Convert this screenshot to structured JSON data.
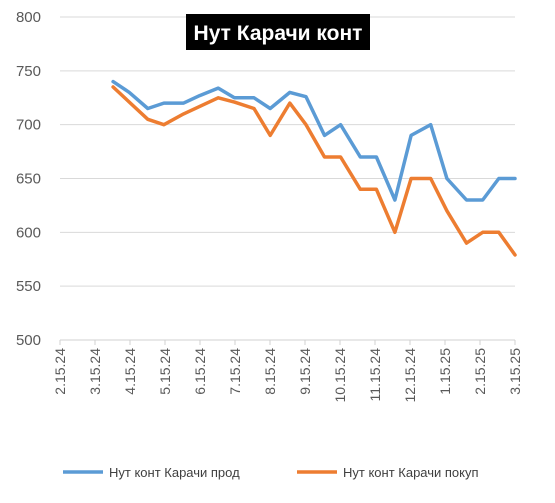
{
  "chart_data": {
    "type": "line",
    "title": "Нут Карачи конт",
    "xlabel": "",
    "ylabel": "",
    "ylim": [
      500,
      800
    ],
    "yticks": [
      500,
      550,
      600,
      650,
      700,
      750,
      800
    ],
    "xtick_labels": [
      "2.15.24",
      "3.15.24",
      "4.15.24",
      "5.15.24",
      "6.15.24",
      "7.15.24",
      "8.15.24",
      "9.15.24",
      "10.15.24",
      "11.15.24",
      "12.15.24",
      "1.15.25",
      "2.15.25",
      "3.15.25"
    ],
    "x_start": "2.15.24",
    "x_end": "3.15.25",
    "grid": "horizontal",
    "legend_position": "bottom",
    "series": [
      {
        "name": "Нут конт Карачи прод",
        "color": "#5B9BD5",
        "points": [
          [
            "2024-04-01",
            740
          ],
          [
            "2024-04-15",
            730
          ],
          [
            "2024-05-01",
            715
          ],
          [
            "2024-05-15",
            720
          ],
          [
            "2024-06-01",
            720
          ],
          [
            "2024-06-15",
            727
          ],
          [
            "2024-07-01",
            734
          ],
          [
            "2024-07-15",
            725
          ],
          [
            "2024-08-01",
            725
          ],
          [
            "2024-08-15",
            715
          ],
          [
            "2024-09-01",
            730
          ],
          [
            "2024-09-15",
            726
          ],
          [
            "2024-10-01",
            690
          ],
          [
            "2024-10-15",
            700
          ],
          [
            "2024-11-01",
            670
          ],
          [
            "2024-11-15",
            670
          ],
          [
            "2024-12-01",
            630
          ],
          [
            "2024-12-15",
            690
          ],
          [
            "2025-01-01",
            700
          ],
          [
            "2025-01-15",
            650
          ],
          [
            "2025-02-01",
            630
          ],
          [
            "2025-02-15",
            630
          ],
          [
            "2025-03-01",
            650
          ],
          [
            "2025-03-15",
            650
          ]
        ]
      },
      {
        "name": "Нут конт Карачи покуп",
        "color": "#ED7D31",
        "points": [
          [
            "2024-04-01",
            735
          ],
          [
            "2024-04-15",
            721
          ],
          [
            "2024-05-01",
            705
          ],
          [
            "2024-05-15",
            700
          ],
          [
            "2024-06-01",
            710
          ],
          [
            "2024-06-15",
            717
          ],
          [
            "2024-07-01",
            725
          ],
          [
            "2024-07-15",
            721
          ],
          [
            "2024-08-01",
            715
          ],
          [
            "2024-08-15",
            690
          ],
          [
            "2024-09-01",
            720
          ],
          [
            "2024-09-15",
            700
          ],
          [
            "2024-10-01",
            670
          ],
          [
            "2024-10-15",
            670
          ],
          [
            "2024-11-01",
            640
          ],
          [
            "2024-11-15",
            640
          ],
          [
            "2024-12-01",
            600
          ],
          [
            "2024-12-15",
            650
          ],
          [
            "2025-01-01",
            650
          ],
          [
            "2025-01-15",
            620
          ],
          [
            "2025-02-01",
            590
          ],
          [
            "2025-02-15",
            600
          ],
          [
            "2025-03-01",
            600
          ],
          [
            "2025-03-15",
            579
          ]
        ]
      }
    ]
  }
}
